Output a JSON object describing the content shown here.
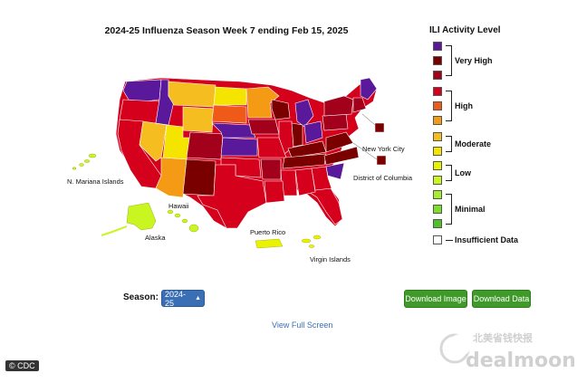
{
  "title": "2024-25 Influenza Season Week 7 ending Feb 15, 2025",
  "legend": {
    "title": "ILI Activity Level",
    "levels": [
      {
        "name": "Very High",
        "colors": [
          "#5a189a",
          "#7a0000",
          "#a3001b"
        ]
      },
      {
        "name": "High",
        "colors": [
          "#d5001b",
          "#f05a18",
          "#f49a14"
        ]
      },
      {
        "name": "Moderate",
        "colors": [
          "#f5bd1f",
          "#f5e400"
        ]
      },
      {
        "name": "Low",
        "colors": [
          "#e9f300",
          "#c9f520"
        ]
      },
      {
        "name": "Minimal",
        "colors": [
          "#a4ee2d",
          "#7bdf2a",
          "#4ec226"
        ]
      },
      {
        "name": "Insufficient Data",
        "colors": [
          "#ffffff"
        ]
      }
    ]
  },
  "map_labels": {
    "mariana": "N. Mariana Islands",
    "hawaii": "Hawaii",
    "alaska": "Alaska",
    "puerto_rico": "Puerto Rico",
    "virgin_islands": "Virgin Islands",
    "nyc": "New York City",
    "dc": "District of Columbia"
  },
  "controls": {
    "season_label": "Season:",
    "season_value": "2024-25",
    "download_image": "Download Image",
    "download_data": "Download Data",
    "view_full": "View Full Screen"
  },
  "credit": "© CDC",
  "watermark": {
    "chinese": "北美省钱快报",
    "latin": "dealmoon"
  },
  "colors": {
    "very_high_purple": "#5a189a",
    "very_high_dark": "#7a0000",
    "very_high_red": "#a3001b",
    "high_red": "#d5001b",
    "high_orange": "#f05a18",
    "high_amber": "#f49a14",
    "moderate_gold": "#f5bd1f",
    "moderate_yellow": "#f5e400",
    "low_yellow": "#e9f300",
    "low_lime": "#c9f520",
    "button_green": "#3f9a2a",
    "select_blue": "#3a6fb5"
  }
}
